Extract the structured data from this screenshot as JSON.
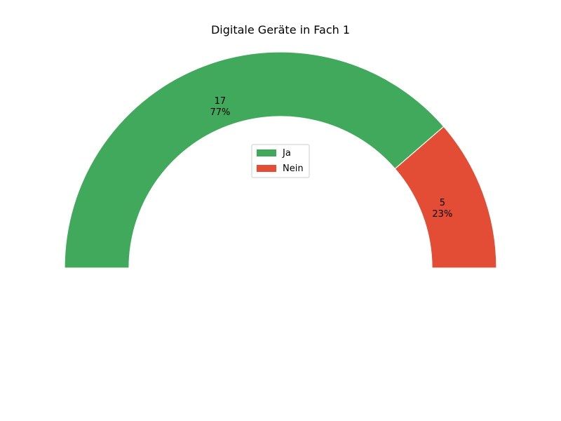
{
  "chart_data": {
    "type": "pie",
    "variant": "half-donut",
    "title": "Digitale Geräte in Fach 1",
    "categories": [
      "Ja",
      "Nein"
    ],
    "values": [
      17,
      5
    ],
    "percent_labels": [
      "77%",
      "23%"
    ],
    "colors": [
      "#41a95b",
      "#e44d35"
    ],
    "legend": {
      "entries": [
        "Ja",
        "Nein"
      ],
      "placement": "center"
    }
  }
}
